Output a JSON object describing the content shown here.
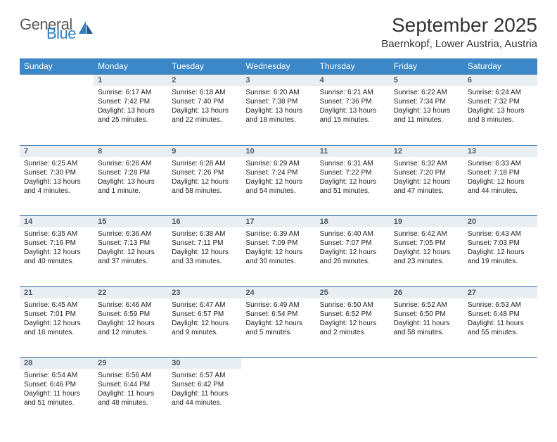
{
  "logo": {
    "word1": "General",
    "word2": "Blue",
    "color1": "#5a5a5a",
    "color2": "#2f7fc1"
  },
  "title": "September 2025",
  "subtitle": "Baernkopf, Lower Austria, Austria",
  "header_bg": "#3b87c8",
  "header_text": "#ffffff",
  "daynum_bg": "#e9eef3",
  "daynum_border": "#2b6aa3",
  "weekdays": [
    "Sunday",
    "Monday",
    "Tuesday",
    "Wednesday",
    "Thursday",
    "Friday",
    "Saturday"
  ],
  "start_offset": 1,
  "days": [
    {
      "n": 1,
      "sunrise": "6:17 AM",
      "sunset": "7:42 PM",
      "daylight": "13 hours and 25 minutes."
    },
    {
      "n": 2,
      "sunrise": "6:18 AM",
      "sunset": "7:40 PM",
      "daylight": "13 hours and 22 minutes."
    },
    {
      "n": 3,
      "sunrise": "6:20 AM",
      "sunset": "7:38 PM",
      "daylight": "13 hours and 18 minutes."
    },
    {
      "n": 4,
      "sunrise": "6:21 AM",
      "sunset": "7:36 PM",
      "daylight": "13 hours and 15 minutes."
    },
    {
      "n": 5,
      "sunrise": "6:22 AM",
      "sunset": "7:34 PM",
      "daylight": "13 hours and 11 minutes."
    },
    {
      "n": 6,
      "sunrise": "6:24 AM",
      "sunset": "7:32 PM",
      "daylight": "13 hours and 8 minutes."
    },
    {
      "n": 7,
      "sunrise": "6:25 AM",
      "sunset": "7:30 PM",
      "daylight": "13 hours and 4 minutes."
    },
    {
      "n": 8,
      "sunrise": "6:26 AM",
      "sunset": "7:28 PM",
      "daylight": "13 hours and 1 minute."
    },
    {
      "n": 9,
      "sunrise": "6:28 AM",
      "sunset": "7:26 PM",
      "daylight": "12 hours and 58 minutes."
    },
    {
      "n": 10,
      "sunrise": "6:29 AM",
      "sunset": "7:24 PM",
      "daylight": "12 hours and 54 minutes."
    },
    {
      "n": 11,
      "sunrise": "6:31 AM",
      "sunset": "7:22 PM",
      "daylight": "12 hours and 51 minutes."
    },
    {
      "n": 12,
      "sunrise": "6:32 AM",
      "sunset": "7:20 PM",
      "daylight": "12 hours and 47 minutes."
    },
    {
      "n": 13,
      "sunrise": "6:33 AM",
      "sunset": "7:18 PM",
      "daylight": "12 hours and 44 minutes."
    },
    {
      "n": 14,
      "sunrise": "6:35 AM",
      "sunset": "7:16 PM",
      "daylight": "12 hours and 40 minutes."
    },
    {
      "n": 15,
      "sunrise": "6:36 AM",
      "sunset": "7:13 PM",
      "daylight": "12 hours and 37 minutes."
    },
    {
      "n": 16,
      "sunrise": "6:38 AM",
      "sunset": "7:11 PM",
      "daylight": "12 hours and 33 minutes."
    },
    {
      "n": 17,
      "sunrise": "6:39 AM",
      "sunset": "7:09 PM",
      "daylight": "12 hours and 30 minutes."
    },
    {
      "n": 18,
      "sunrise": "6:40 AM",
      "sunset": "7:07 PM",
      "daylight": "12 hours and 26 minutes."
    },
    {
      "n": 19,
      "sunrise": "6:42 AM",
      "sunset": "7:05 PM",
      "daylight": "12 hours and 23 minutes."
    },
    {
      "n": 20,
      "sunrise": "6:43 AM",
      "sunset": "7:03 PM",
      "daylight": "12 hours and 19 minutes."
    },
    {
      "n": 21,
      "sunrise": "6:45 AM",
      "sunset": "7:01 PM",
      "daylight": "12 hours and 16 minutes."
    },
    {
      "n": 22,
      "sunrise": "6:46 AM",
      "sunset": "6:59 PM",
      "daylight": "12 hours and 12 minutes."
    },
    {
      "n": 23,
      "sunrise": "6:47 AM",
      "sunset": "6:57 PM",
      "daylight": "12 hours and 9 minutes."
    },
    {
      "n": 24,
      "sunrise": "6:49 AM",
      "sunset": "6:54 PM",
      "daylight": "12 hours and 5 minutes."
    },
    {
      "n": 25,
      "sunrise": "6:50 AM",
      "sunset": "6:52 PM",
      "daylight": "12 hours and 2 minutes."
    },
    {
      "n": 26,
      "sunrise": "6:52 AM",
      "sunset": "6:50 PM",
      "daylight": "11 hours and 58 minutes."
    },
    {
      "n": 27,
      "sunrise": "6:53 AM",
      "sunset": "6:48 PM",
      "daylight": "11 hours and 55 minutes."
    },
    {
      "n": 28,
      "sunrise": "6:54 AM",
      "sunset": "6:46 PM",
      "daylight": "11 hours and 51 minutes."
    },
    {
      "n": 29,
      "sunrise": "6:56 AM",
      "sunset": "6:44 PM",
      "daylight": "11 hours and 48 minutes."
    },
    {
      "n": 30,
      "sunrise": "6:57 AM",
      "sunset": "6:42 PM",
      "daylight": "11 hours and 44 minutes."
    }
  ],
  "labels": {
    "sunrise": "Sunrise:",
    "sunset": "Sunset:",
    "daylight": "Daylight:"
  },
  "cell_fontsize": 10,
  "title_fontsize": 28,
  "subtitle_fontsize": 15
}
